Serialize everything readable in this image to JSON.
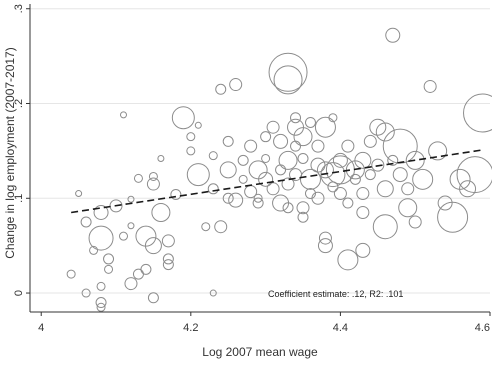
{
  "chart_data": {
    "type": "scatter",
    "title": "",
    "xlabel": "Log 2007 mean wage",
    "ylabel": "Change in log employment (2007-2017)",
    "xlim": [
      3.985,
      4.6
    ],
    "ylim": [
      -0.02,
      0.305
    ],
    "xticks": [
      4,
      4.2,
      4.4,
      4.6
    ],
    "xtick_labels": [
      "4",
      "4.2",
      "4.4",
      "4.6"
    ],
    "yticks": [
      0,
      0.1,
      0.2,
      0.3
    ],
    "ytick_labels": [
      "0",
      ".1",
      ".2",
      ".3"
    ],
    "grid": "horizontal",
    "marker": "hollow circle, area weighted",
    "fit_line": {
      "style": "dashed",
      "x": [
        4.04,
        4.59
      ],
      "y": [
        0.085,
        0.151
      ]
    },
    "annotation": "Coefficient estimate: .12, R2: .101",
    "points": [
      {
        "x": 4.04,
        "y": 0.02,
        "r": 4
      },
      {
        "x": 4.05,
        "y": 0.105,
        "r": 3
      },
      {
        "x": 4.06,
        "y": 0.075,
        "r": 5
      },
      {
        "x": 4.06,
        "y": 0.0,
        "r": 4
      },
      {
        "x": 4.07,
        "y": 0.045,
        "r": 4
      },
      {
        "x": 4.08,
        "y": 0.058,
        "r": 12
      },
      {
        "x": 4.08,
        "y": 0.085,
        "r": 7
      },
      {
        "x": 4.08,
        "y": 0.007,
        "r": 4
      },
      {
        "x": 4.08,
        "y": -0.01,
        "r": 5
      },
      {
        "x": 4.08,
        "y": -0.015,
        "r": 4
      },
      {
        "x": 4.09,
        "y": 0.025,
        "r": 4
      },
      {
        "x": 4.09,
        "y": 0.036,
        "r": 5
      },
      {
        "x": 4.1,
        "y": 0.092,
        "r": 6
      },
      {
        "x": 4.11,
        "y": 0.188,
        "r": 3
      },
      {
        "x": 4.11,
        "y": 0.06,
        "r": 4
      },
      {
        "x": 4.12,
        "y": 0.099,
        "r": 3
      },
      {
        "x": 4.12,
        "y": 0.071,
        "r": 3
      },
      {
        "x": 4.12,
        "y": 0.01,
        "r": 6
      },
      {
        "x": 4.13,
        "y": 0.02,
        "r": 5
      },
      {
        "x": 4.13,
        "y": 0.121,
        "r": 4
      },
      {
        "x": 4.14,
        "y": 0.025,
        "r": 5
      },
      {
        "x": 4.14,
        "y": 0.06,
        "r": 10
      },
      {
        "x": 4.15,
        "y": 0.123,
        "r": 4
      },
      {
        "x": 4.15,
        "y": 0.115,
        "r": 6
      },
      {
        "x": 4.15,
        "y": 0.05,
        "r": 8
      },
      {
        "x": 4.15,
        "y": -0.005,
        "r": 5
      },
      {
        "x": 4.16,
        "y": 0.142,
        "r": 3
      },
      {
        "x": 4.16,
        "y": 0.085,
        "r": 9
      },
      {
        "x": 4.17,
        "y": 0.055,
        "r": 6
      },
      {
        "x": 4.17,
        "y": 0.036,
        "r": 5
      },
      {
        "x": 4.17,
        "y": 0.03,
        "r": 5
      },
      {
        "x": 4.18,
        "y": 0.104,
        "r": 5
      },
      {
        "x": 4.19,
        "y": 0.185,
        "r": 11
      },
      {
        "x": 4.2,
        "y": 0.165,
        "r": 4
      },
      {
        "x": 4.2,
        "y": 0.15,
        "r": 4
      },
      {
        "x": 4.21,
        "y": 0.177,
        "r": 3
      },
      {
        "x": 4.21,
        "y": 0.125,
        "r": 11
      },
      {
        "x": 4.22,
        "y": 0.07,
        "r": 4
      },
      {
        "x": 4.23,
        "y": 0.0,
        "r": 3
      },
      {
        "x": 4.23,
        "y": 0.11,
        "r": 5
      },
      {
        "x": 4.23,
        "y": 0.145,
        "r": 4
      },
      {
        "x": 4.24,
        "y": 0.215,
        "r": 5
      },
      {
        "x": 4.24,
        "y": 0.07,
        "r": 6
      },
      {
        "x": 4.25,
        "y": 0.1,
        "r": 5
      },
      {
        "x": 4.25,
        "y": 0.13,
        "r": 8
      },
      {
        "x": 4.25,
        "y": 0.16,
        "r": 5
      },
      {
        "x": 4.26,
        "y": 0.22,
        "r": 6
      },
      {
        "x": 4.26,
        "y": 0.098,
        "r": 7
      },
      {
        "x": 4.27,
        "y": 0.14,
        "r": 5
      },
      {
        "x": 4.27,
        "y": 0.12,
        "r": 4
      },
      {
        "x": 4.28,
        "y": 0.107,
        "r": 6
      },
      {
        "x": 4.28,
        "y": 0.155,
        "r": 6
      },
      {
        "x": 4.29,
        "y": 0.13,
        "r": 9
      },
      {
        "x": 4.29,
        "y": 0.1,
        "r": 4
      },
      {
        "x": 4.29,
        "y": 0.095,
        "r": 5
      },
      {
        "x": 4.3,
        "y": 0.165,
        "r": 5
      },
      {
        "x": 4.3,
        "y": 0.12,
        "r": 7
      },
      {
        "x": 4.3,
        "y": 0.142,
        "r": 4
      },
      {
        "x": 4.31,
        "y": 0.175,
        "r": 6
      },
      {
        "x": 4.31,
        "y": 0.11,
        "r": 6
      },
      {
        "x": 4.32,
        "y": 0.095,
        "r": 8
      },
      {
        "x": 4.32,
        "y": 0.16,
        "r": 7
      },
      {
        "x": 4.32,
        "y": 0.13,
        "r": 5
      },
      {
        "x": 4.33,
        "y": 0.225,
        "r": 14
      },
      {
        "x": 4.33,
        "y": 0.233,
        "r": 19
      },
      {
        "x": 4.33,
        "y": 0.14,
        "r": 9
      },
      {
        "x": 4.33,
        "y": 0.115,
        "r": 6
      },
      {
        "x": 4.33,
        "y": 0.09,
        "r": 5
      },
      {
        "x": 4.34,
        "y": 0.185,
        "r": 5
      },
      {
        "x": 4.34,
        "y": 0.175,
        "r": 8
      },
      {
        "x": 4.34,
        "y": 0.155,
        "r": 5
      },
      {
        "x": 4.34,
        "y": 0.125,
        "r": 6
      },
      {
        "x": 4.35,
        "y": 0.09,
        "r": 6
      },
      {
        "x": 4.35,
        "y": 0.08,
        "r": 5
      },
      {
        "x": 4.35,
        "y": 0.165,
        "r": 9
      },
      {
        "x": 4.35,
        "y": 0.142,
        "r": 5
      },
      {
        "x": 4.36,
        "y": 0.12,
        "r": 10
      },
      {
        "x": 4.36,
        "y": 0.105,
        "r": 5
      },
      {
        "x": 4.36,
        "y": 0.18,
        "r": 5
      },
      {
        "x": 4.37,
        "y": 0.135,
        "r": 7
      },
      {
        "x": 4.37,
        "y": 0.155,
        "r": 6
      },
      {
        "x": 4.37,
        "y": 0.1,
        "r": 6
      },
      {
        "x": 4.38,
        "y": 0.13,
        "r": 8
      },
      {
        "x": 4.38,
        "y": 0.175,
        "r": 10
      },
      {
        "x": 4.38,
        "y": 0.058,
        "r": 6
      },
      {
        "x": 4.38,
        "y": 0.05,
        "r": 7
      },
      {
        "x": 4.39,
        "y": 0.125,
        "r": 12
      },
      {
        "x": 4.39,
        "y": 0.112,
        "r": 5
      },
      {
        "x": 4.39,
        "y": 0.185,
        "r": 4
      },
      {
        "x": 4.4,
        "y": 0.14,
        "r": 7
      },
      {
        "x": 4.4,
        "y": 0.13,
        "r": 14
      },
      {
        "x": 4.4,
        "y": 0.105,
        "r": 6
      },
      {
        "x": 4.41,
        "y": 0.155,
        "r": 6
      },
      {
        "x": 4.41,
        "y": 0.095,
        "r": 5
      },
      {
        "x": 4.41,
        "y": 0.035,
        "r": 10
      },
      {
        "x": 4.42,
        "y": 0.13,
        "r": 9
      },
      {
        "x": 4.42,
        "y": 0.12,
        "r": 5
      },
      {
        "x": 4.43,
        "y": 0.14,
        "r": 8
      },
      {
        "x": 4.43,
        "y": 0.105,
        "r": 6
      },
      {
        "x": 4.43,
        "y": 0.085,
        "r": 6
      },
      {
        "x": 4.43,
        "y": 0.045,
        "r": 7
      },
      {
        "x": 4.44,
        "y": 0.16,
        "r": 6
      },
      {
        "x": 4.44,
        "y": 0.125,
        "r": 5
      },
      {
        "x": 4.45,
        "y": 0.175,
        "r": 8
      },
      {
        "x": 4.45,
        "y": 0.135,
        "r": 6
      },
      {
        "x": 4.46,
        "y": 0.17,
        "r": 9
      },
      {
        "x": 4.46,
        "y": 0.11,
        "r": 8
      },
      {
        "x": 4.46,
        "y": 0.07,
        "r": 12
      },
      {
        "x": 4.47,
        "y": 0.272,
        "r": 7
      },
      {
        "x": 4.47,
        "y": 0.14,
        "r": 5
      },
      {
        "x": 4.48,
        "y": 0.155,
        "r": 17
      },
      {
        "x": 4.48,
        "y": 0.125,
        "r": 7
      },
      {
        "x": 4.49,
        "y": 0.09,
        "r": 9
      },
      {
        "x": 4.49,
        "y": 0.11,
        "r": 6
      },
      {
        "x": 4.5,
        "y": 0.14,
        "r": 9
      },
      {
        "x": 4.5,
        "y": 0.075,
        "r": 6
      },
      {
        "x": 4.51,
        "y": 0.12,
        "r": 10
      },
      {
        "x": 4.52,
        "y": 0.218,
        "r": 6
      },
      {
        "x": 4.53,
        "y": 0.15,
        "r": 9
      },
      {
        "x": 4.54,
        "y": 0.095,
        "r": 7
      },
      {
        "x": 4.55,
        "y": 0.08,
        "r": 15
      },
      {
        "x": 4.56,
        "y": 0.12,
        "r": 10
      },
      {
        "x": 4.57,
        "y": 0.11,
        "r": 8
      },
      {
        "x": 4.58,
        "y": 0.125,
        "r": 18
      },
      {
        "x": 4.59,
        "y": 0.19,
        "r": 19
      }
    ]
  }
}
